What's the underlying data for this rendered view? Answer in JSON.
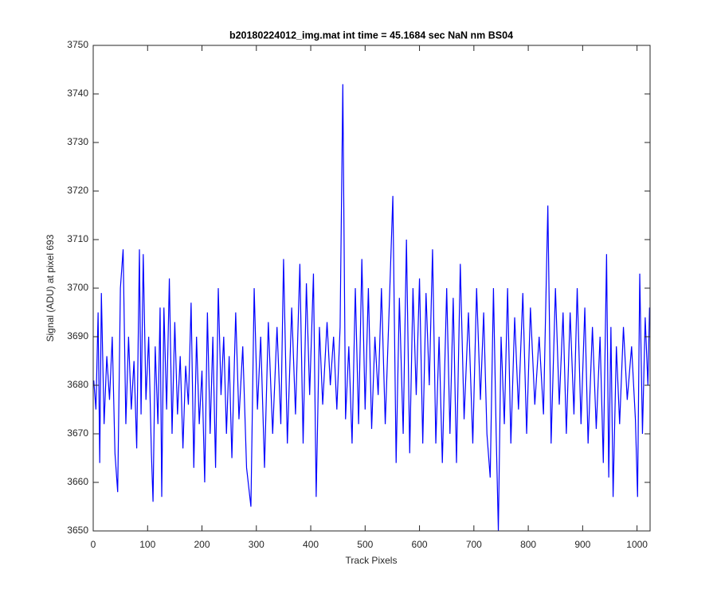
{
  "chart_data": {
    "type": "line",
    "title": "b20180224012_img.mat int time = 45.1684 sec  NaN nm BS04",
    "xlabel": "Track Pixels",
    "ylabel": "Signal (ADU) at pixel 693",
    "x": [
      1,
      5,
      9,
      12,
      15,
      20,
      25,
      30,
      35,
      40,
      45,
      50,
      55,
      60,
      65,
      70,
      75,
      80,
      85,
      88,
      92,
      97,
      102,
      107,
      110,
      114,
      119,
      123,
      126,
      130,
      135,
      140,
      145,
      150,
      155,
      160,
      165,
      170,
      175,
      180,
      185,
      190,
      195,
      200,
      205,
      210,
      215,
      220,
      225,
      230,
      235,
      240,
      245,
      250,
      255,
      262,
      268,
      275,
      282,
      290,
      296,
      302,
      308,
      315,
      322,
      330,
      338,
      345,
      350,
      357,
      365,
      372,
      380,
      386,
      392,
      398,
      405,
      410,
      416,
      422,
      430,
      436,
      442,
      448,
      454,
      459,
      464,
      470,
      476,
      482,
      488,
      494,
      500,
      506,
      512,
      518,
      524,
      530,
      537,
      544,
      551,
      557,
      563,
      570,
      576,
      582,
      588,
      594,
      600,
      606,
      612,
      618,
      624,
      630,
      636,
      642,
      650,
      656,
      662,
      668,
      675,
      682,
      690,
      698,
      705,
      712,
      718,
      724,
      730,
      736,
      741,
      745,
      750,
      756,
      762,
      768,
      775,
      782,
      790,
      797,
      804,
      812,
      820,
      828,
      836,
      842,
      850,
      857,
      864,
      870,
      877,
      884,
      890,
      897,
      904,
      910,
      918,
      925,
      932,
      938,
      944,
      948,
      952,
      956,
      962,
      968,
      975,
      982,
      990,
      997,
      1001,
      1005,
      1010,
      1015,
      1020,
      1023
    ],
    "series": [
      {
        "name": "signal",
        "color": "#0000ff",
        "values": [
          3681,
          3675,
          3695,
          3664,
          3699,
          3672,
          3686,
          3677,
          3690,
          3666,
          3658,
          3700,
          3708,
          3672,
          3690,
          3675,
          3685,
          3667,
          3708,
          3674,
          3707,
          3677,
          3690,
          3666,
          3656,
          3688,
          3672,
          3696,
          3657,
          3696,
          3675,
          3702,
          3670,
          3693,
          3674,
          3686,
          3667,
          3684,
          3676,
          3697,
          3663,
          3690,
          3672,
          3683,
          3660,
          3695,
          3670,
          3690,
          3663,
          3700,
          3678,
          3690,
          3670,
          3686,
          3665,
          3695,
          3673,
          3688,
          3663,
          3655,
          3700,
          3675,
          3690,
          3663,
          3693,
          3670,
          3692,
          3672,
          3706,
          3668,
          3696,
          3674,
          3705,
          3668,
          3701,
          3678,
          3703,
          3657,
          3692,
          3676,
          3693,
          3680,
          3690,
          3675,
          3692,
          3742,
          3673,
          3688,
          3668,
          3700,
          3672,
          3706,
          3675,
          3700,
          3671,
          3690,
          3678,
          3700,
          3672,
          3695,
          3719,
          3664,
          3698,
          3670,
          3710,
          3666,
          3700,
          3678,
          3702,
          3668,
          3699,
          3680,
          3708,
          3668,
          3690,
          3664,
          3700,
          3670,
          3698,
          3664,
          3705,
          3673,
          3695,
          3668,
          3700,
          3677,
          3695,
          3670,
          3661,
          3700,
          3670,
          3650,
          3690,
          3672,
          3700,
          3668,
          3694,
          3675,
          3699,
          3670,
          3696,
          3676,
          3690,
          3674,
          3717,
          3668,
          3700,
          3676,
          3695,
          3670,
          3695,
          3674,
          3700,
          3672,
          3696,
          3668,
          3692,
          3671,
          3690,
          3664,
          3707,
          3661,
          3692,
          3657,
          3688,
          3672,
          3692,
          3677,
          3688,
          3673,
          3657,
          3703,
          3670,
          3694,
          3680,
          3696
        ]
      }
    ],
    "xlim": [
      0,
      1024
    ],
    "ylim": [
      3650,
      3750
    ],
    "xticks": [
      0,
      100,
      200,
      300,
      400,
      500,
      600,
      700,
      800,
      900,
      1000
    ],
    "yticks": [
      3650,
      3660,
      3670,
      3680,
      3690,
      3700,
      3710,
      3720,
      3730,
      3740,
      3750
    ]
  }
}
